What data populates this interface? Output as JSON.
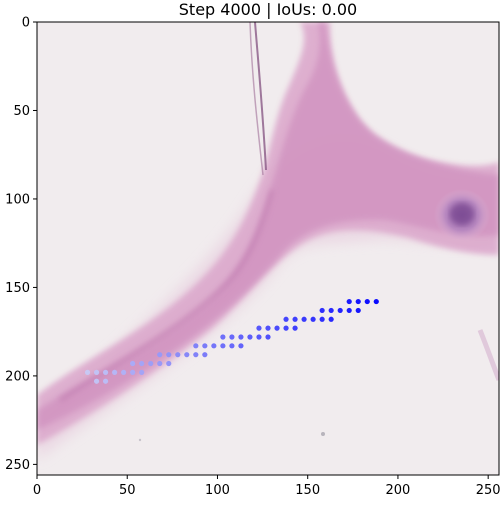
{
  "chart_data": {
    "type": "scatter",
    "title": "Step 4000 | IoUs: 0.00",
    "xlabel": "",
    "ylabel": "",
    "xlim": [
      0,
      256
    ],
    "ylim": [
      256,
      0
    ],
    "x_ticks": [
      0,
      50,
      100,
      150,
      200,
      250
    ],
    "y_ticks": [
      0,
      50,
      100,
      150,
      200,
      250
    ],
    "grid": false,
    "background": "histology tissue image (pink stained tissue band on light background)",
    "point_color_start": "#c8c8f4",
    "point_color_end": "#0a0aff",
    "points": [
      [
        28,
        198
      ],
      [
        33,
        198
      ],
      [
        38,
        198
      ],
      [
        43,
        198
      ],
      [
        48,
        198
      ],
      [
        53,
        198
      ],
      [
        58,
        198
      ],
      [
        33,
        203
      ],
      [
        38,
        203
      ],
      [
        53,
        193
      ],
      [
        58,
        193
      ],
      [
        63,
        193
      ],
      [
        68,
        193
      ],
      [
        73,
        193
      ],
      [
        68,
        188
      ],
      [
        73,
        188
      ],
      [
        78,
        188
      ],
      [
        83,
        188
      ],
      [
        88,
        188
      ],
      [
        93,
        188
      ],
      [
        88,
        183
      ],
      [
        93,
        183
      ],
      [
        98,
        183
      ],
      [
        103,
        183
      ],
      [
        108,
        183
      ],
      [
        113,
        183
      ],
      [
        103,
        178
      ],
      [
        108,
        178
      ],
      [
        113,
        178
      ],
      [
        118,
        178
      ],
      [
        123,
        178
      ],
      [
        128,
        178
      ],
      [
        123,
        173
      ],
      [
        128,
        173
      ],
      [
        133,
        173
      ],
      [
        138,
        173
      ],
      [
        143,
        173
      ],
      [
        138,
        168
      ],
      [
        143,
        168
      ],
      [
        148,
        168
      ],
      [
        153,
        168
      ],
      [
        158,
        168
      ],
      [
        163,
        168
      ],
      [
        158,
        163
      ],
      [
        163,
        163
      ],
      [
        168,
        163
      ],
      [
        173,
        163
      ],
      [
        178,
        163
      ],
      [
        173,
        158
      ],
      [
        178,
        158
      ],
      [
        183,
        158
      ],
      [
        188,
        158
      ]
    ]
  }
}
